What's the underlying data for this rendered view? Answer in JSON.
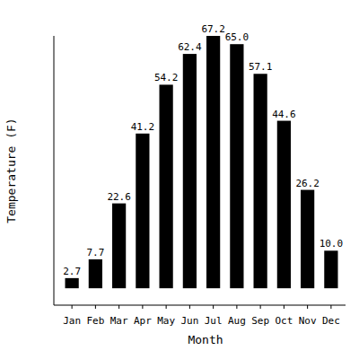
{
  "chart_data": {
    "type": "bar",
    "x_label": "Month",
    "y_label": "Temperature (F)",
    "categories": [
      "Jan",
      "Feb",
      "Mar",
      "Apr",
      "May",
      "Jun",
      "Jul",
      "Aug",
      "Sep",
      "Oct",
      "Nov",
      "Dec"
    ],
    "values": [
      2.7,
      7.7,
      22.6,
      41.2,
      54.2,
      62.4,
      67.2,
      65.0,
      57.1,
      44.6,
      26.2,
      10.0
    ],
    "value_labels": [
      "2.7",
      "7.7",
      "22.6",
      "41.2",
      "54.2",
      "62.4",
      "67.2",
      "65.0",
      "57.1",
      "44.6",
      "26.2",
      "10.0"
    ],
    "color": "#000000",
    "ylim": [
      -4.5,
      67.2
    ],
    "grid": false,
    "data_labels": true,
    "tick_labels": "x"
  }
}
